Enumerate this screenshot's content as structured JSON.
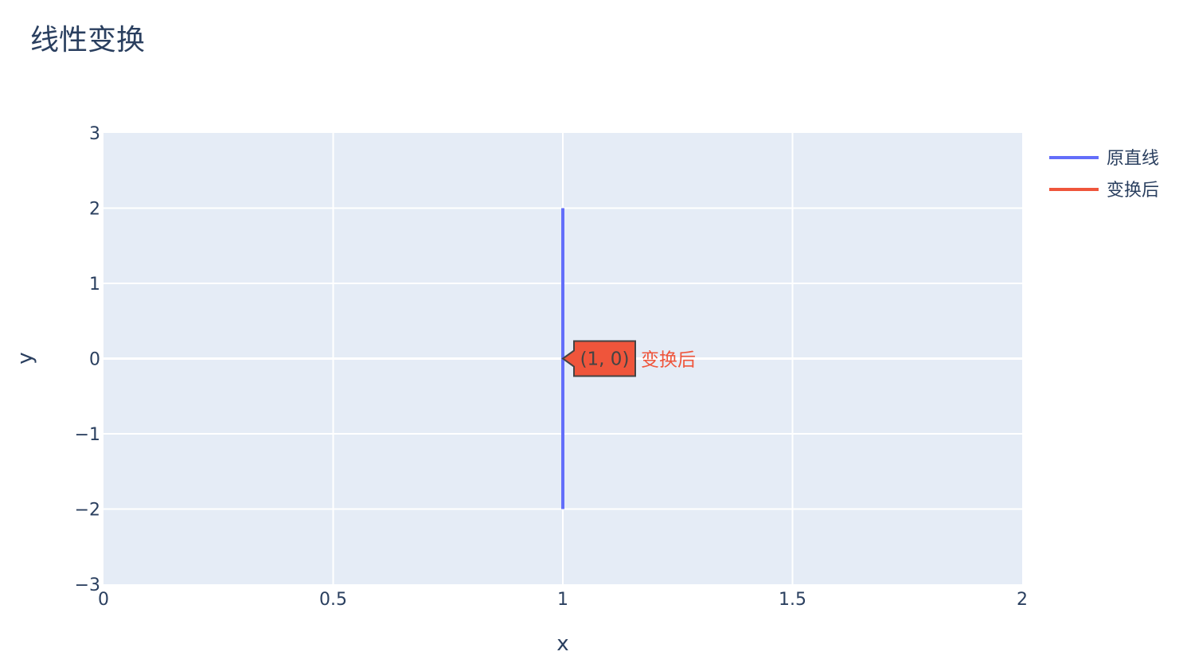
{
  "chart_data": {
    "type": "line",
    "title": "线性变换",
    "xlabel": "x",
    "ylabel": "y",
    "xlim": [
      0,
      2
    ],
    "ylim": [
      -3,
      3
    ],
    "x_ticks": [
      {
        "value": 0,
        "label": "0"
      },
      {
        "value": 0.5,
        "label": "0.5"
      },
      {
        "value": 1,
        "label": "1"
      },
      {
        "value": 1.5,
        "label": "1.5"
      },
      {
        "value": 2,
        "label": "2"
      }
    ],
    "y_ticks": [
      {
        "value": 3,
        "label": "3"
      },
      {
        "value": 2,
        "label": "2"
      },
      {
        "value": 1,
        "label": "1"
      },
      {
        "value": 0,
        "label": "0"
      },
      {
        "value": -1,
        "label": "−1"
      },
      {
        "value": -2,
        "label": "−2"
      },
      {
        "value": -3,
        "label": "−3"
      }
    ],
    "grid": true,
    "legend_position": "top-right",
    "series": [
      {
        "name": "原直线",
        "color": "#636efa",
        "x": [
          1,
          1
        ],
        "y": [
          -2,
          2
        ]
      },
      {
        "name": "变换后",
        "color": "#ef553b",
        "x": [
          1,
          1
        ],
        "y": [
          0,
          0
        ]
      }
    ],
    "hover_label": {
      "text": "(1, 0)",
      "series_name": "变换后",
      "x": 1,
      "y": 0,
      "background": "#ef553b"
    },
    "colors": {
      "plot_background": "#e5ecf6",
      "grid": "#ffffff",
      "text": "#2a3f5f"
    }
  }
}
